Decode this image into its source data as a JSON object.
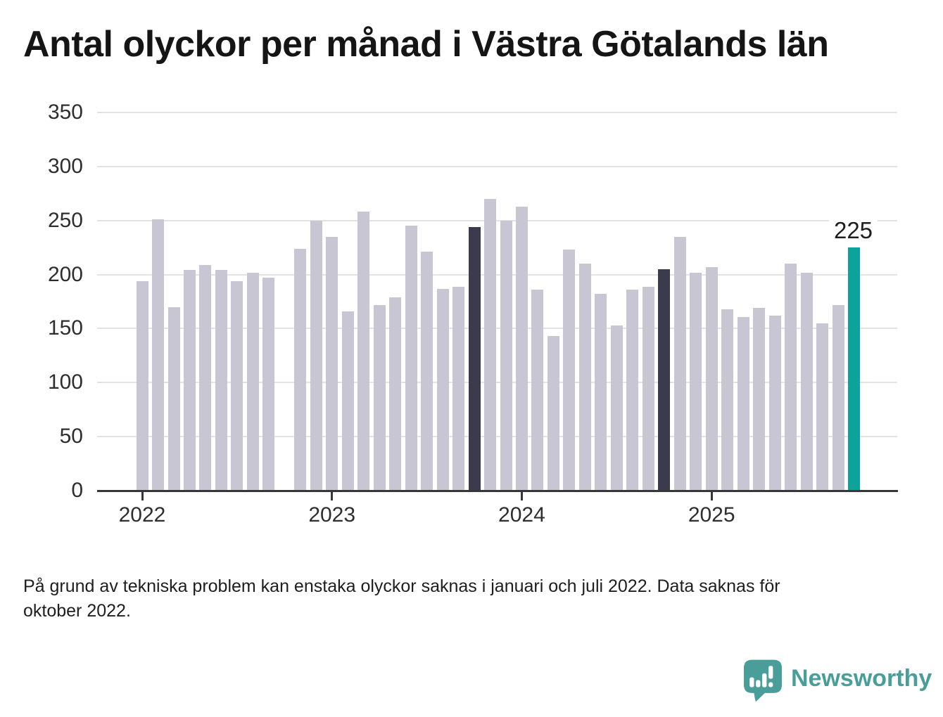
{
  "title": "Antal olyckor per månad i Västra Götalands län",
  "footnote": "På grund av tekniska problem kan enstaka olyckor saknas i januari och juli 2022. Data saknas för oktober 2022.",
  "footnote_lines": [
    "På grund av tekniska problem kan enstaka olyckor saknas i januari och juli 2022. Data saknas för",
    "oktober 2022."
  ],
  "branding": {
    "name": "Newsworthy",
    "icon": "newsworthy-speech-bubble-bar-chart-icon",
    "color": "#4a9e99"
  },
  "colors": {
    "bar_default": "#c7c6d2",
    "bar_highlight_dark": "#3b3b4d",
    "bar_highlight_latest": "#0da39c",
    "gridline": "#e3e3e3",
    "axis": "#373737",
    "tick_label": "#2e2e2e",
    "title_text": "#151515",
    "annotation_text": "#1f1f1f"
  },
  "chart_data": {
    "type": "bar",
    "title": "Antal olyckor per månad i Västra Götalands län",
    "xlabel": "",
    "ylabel": "",
    "ylim": [
      0,
      350
    ],
    "yticks": [
      0,
      50,
      100,
      150,
      200,
      250,
      300,
      350
    ],
    "xticks": [
      "2022",
      "2023",
      "2024",
      "2025"
    ],
    "grid": "horizontal",
    "legend": "none",
    "missing_months": [
      "2022-10"
    ],
    "annotation": {
      "month": "2025-10",
      "label": "225"
    },
    "points": [
      {
        "month": "2022-01",
        "value": 194
      },
      {
        "month": "2022-02",
        "value": 251
      },
      {
        "month": "2022-03",
        "value": 170
      },
      {
        "month": "2022-04",
        "value": 204
      },
      {
        "month": "2022-05",
        "value": 209
      },
      {
        "month": "2022-06",
        "value": 204
      },
      {
        "month": "2022-07",
        "value": 194
      },
      {
        "month": "2022-08",
        "value": 202
      },
      {
        "month": "2022-09",
        "value": 197
      },
      {
        "month": "2022-10",
        "value": null,
        "missing": true
      },
      {
        "month": "2022-11",
        "value": 224
      },
      {
        "month": "2022-12",
        "value": 250
      },
      {
        "month": "2023-01",
        "value": 235
      },
      {
        "month": "2023-02",
        "value": 166
      },
      {
        "month": "2023-03",
        "value": 258
      },
      {
        "month": "2023-04",
        "value": 172
      },
      {
        "month": "2023-05",
        "value": 179
      },
      {
        "month": "2023-06",
        "value": 245
      },
      {
        "month": "2023-07",
        "value": 221
      },
      {
        "month": "2023-08",
        "value": 187
      },
      {
        "month": "2023-09",
        "value": 189
      },
      {
        "month": "2023-10",
        "value": 244,
        "highlight": "dark"
      },
      {
        "month": "2023-11",
        "value": 270
      },
      {
        "month": "2023-12",
        "value": 250
      },
      {
        "month": "2024-01",
        "value": 263
      },
      {
        "month": "2024-02",
        "value": 186
      },
      {
        "month": "2024-03",
        "value": 143
      },
      {
        "month": "2024-04",
        "value": 223
      },
      {
        "month": "2024-05",
        "value": 210
      },
      {
        "month": "2024-06",
        "value": 182
      },
      {
        "month": "2024-07",
        "value": 153
      },
      {
        "month": "2024-08",
        "value": 186
      },
      {
        "month": "2024-09",
        "value": 189
      },
      {
        "month": "2024-10",
        "value": 205,
        "highlight": "dark"
      },
      {
        "month": "2024-11",
        "value": 235
      },
      {
        "month": "2024-12",
        "value": 202
      },
      {
        "month": "2025-01",
        "value": 207
      },
      {
        "month": "2025-02",
        "value": 168
      },
      {
        "month": "2025-03",
        "value": 161
      },
      {
        "month": "2025-04",
        "value": 169
      },
      {
        "month": "2025-05",
        "value": 162
      },
      {
        "month": "2025-06",
        "value": 210
      },
      {
        "month": "2025-07",
        "value": 202
      },
      {
        "month": "2025-08",
        "value": 155
      },
      {
        "month": "2025-09",
        "value": 172
      },
      {
        "month": "2025-10",
        "value": 225,
        "highlight": "latest"
      }
    ]
  }
}
